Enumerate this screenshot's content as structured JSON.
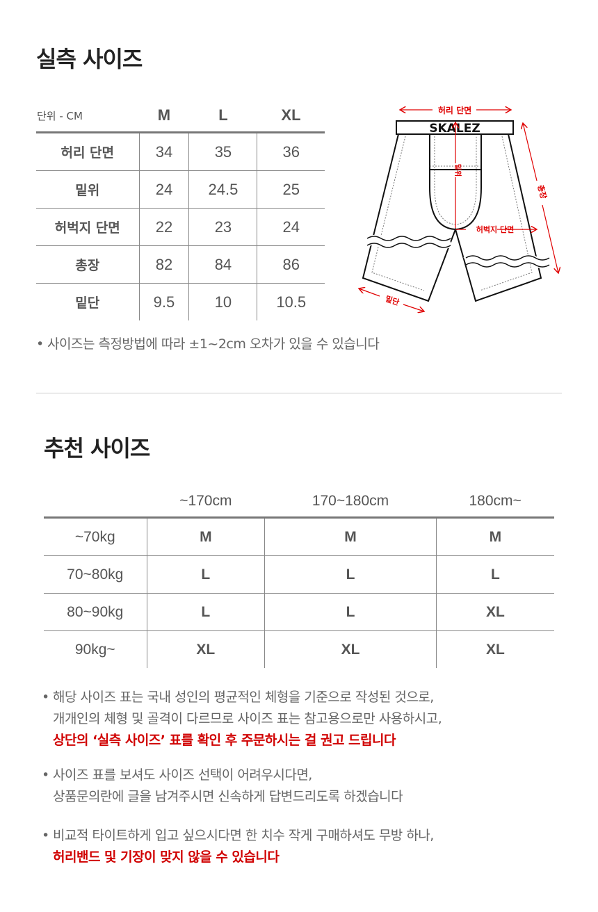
{
  "measured": {
    "title": "실측 사이즈",
    "unit": "단위 - CM",
    "sizes": [
      "M",
      "L",
      "XL"
    ],
    "rows": [
      {
        "label": "허리 단면",
        "values": [
          "34",
          "35",
          "36"
        ]
      },
      {
        "label": "밑위",
        "values": [
          "24",
          "24.5",
          "25"
        ]
      },
      {
        "label": "허벅지 단면",
        "values": [
          "22",
          "23",
          "24"
        ]
      },
      {
        "label": "총장",
        "values": [
          "82",
          "84",
          "86"
        ]
      },
      {
        "label": "밑단",
        "values": [
          "9.5",
          "10",
          "10.5"
        ]
      }
    ],
    "note": "사이즈는 측정방법에 따라 ±1~2cm 오차가 있을 수 있습니다"
  },
  "diagram": {
    "brand": "SKALEZ",
    "waist": "허리 단면",
    "rise": "밑위",
    "thigh": "허벅지 단면",
    "length": "총장",
    "hem": "밑단",
    "accent": "#e00000"
  },
  "recommended": {
    "title": "추천 사이즈",
    "heights": [
      "~170cm",
      "170~180cm",
      "180cm~"
    ],
    "rows": [
      {
        "label": "~70kg",
        "values": [
          "M",
          "M",
          "M"
        ]
      },
      {
        "label": "70~80kg",
        "values": [
          "L",
          "L",
          "L"
        ]
      },
      {
        "label": "80~90kg",
        "values": [
          "L",
          "L",
          "XL"
        ]
      },
      {
        "label": "90kg~",
        "values": [
          "XL",
          "XL",
          "XL"
        ]
      }
    ]
  },
  "notes": [
    {
      "lines": [
        "해당 사이즈 표는 국내 성인의 평균적인 체형을 기준으로 작성된 것으로,",
        "개개인의 체형 및 골격이 다르므로 사이즈 표는 참고용으로만 사용하시고,"
      ],
      "red": "상단의 ‘실측 사이즈’ 표를 확인 후 주문하시는 걸 권고 드립니다"
    },
    {
      "lines": [
        "사이즈 표를 보셔도 사이즈 선택이 어려우시다면,",
        "상품문의란에 글을 남겨주시면 신속하게 답변드리도록 하겠습니다"
      ],
      "red": ""
    },
    {
      "lines": [
        "비교적 타이트하게 입고 싶으시다면 한 치수 작게 구매하셔도 무방 하나,"
      ],
      "red": "허리밴드 및 기장이 맞지 않을 수 있습니다"
    }
  ],
  "bullet": "•"
}
